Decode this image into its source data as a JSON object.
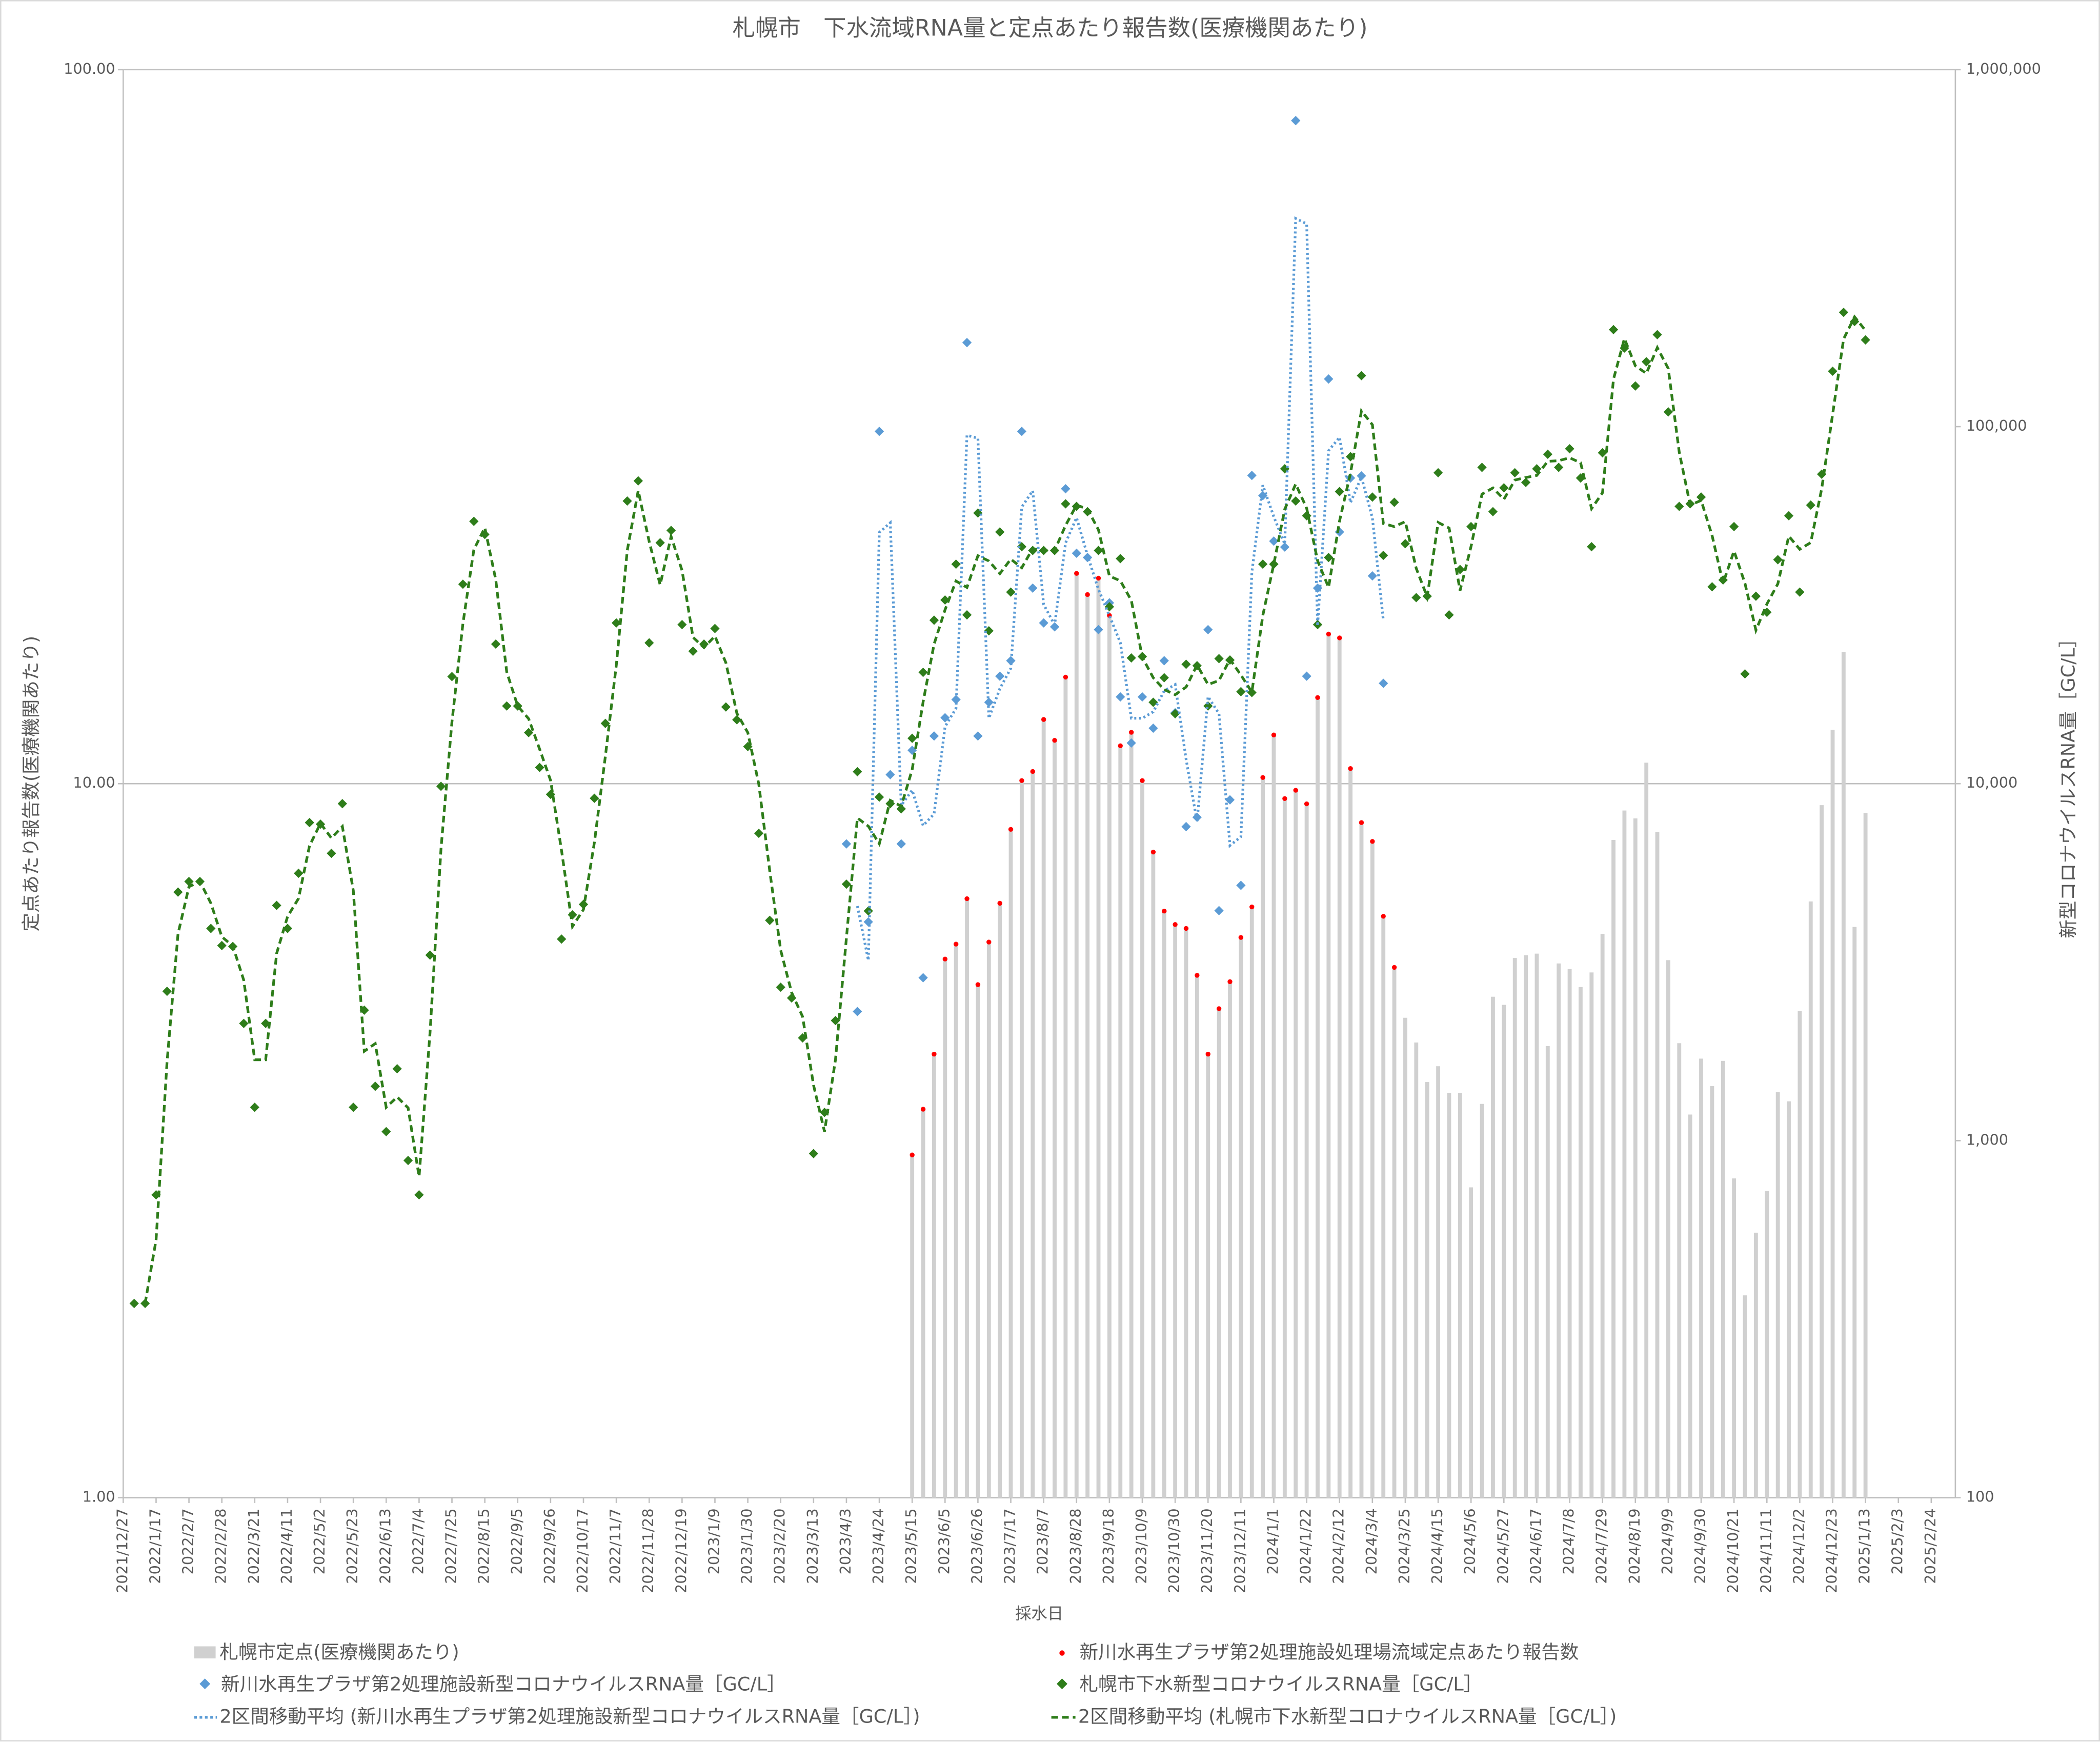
{
  "chart_data": {
    "type": "combo",
    "title": "札幌市　下水流域RNA量と定点あたり報告数(医療機関あたり)",
    "x_label": "採水日",
    "y_label": "定点あたり報告数(医療機関あたり)",
    "y2_label": "新型コロナウイルスRNA量［GC/L］",
    "ylim": [
      1,
      100
    ],
    "yticks": [
      {
        "value": 1,
        "label": "1.00"
      },
      {
        "value": 10,
        "label": "10.00"
      },
      {
        "value": 100,
        "label": "100.00"
      }
    ],
    "y2lim": [
      100,
      1000000
    ],
    "y2ticks": [
      100,
      {
        "value": 1000,
        "label": "1,000"
      },
      {
        "value": 10000,
        "label": "10,000"
      },
      {
        "value": 100000,
        "label": "100,000"
      },
      {
        "value": 1000000,
        "label": "1,000,000"
      }
    ],
    "log_scale": true,
    "grid": true,
    "legend": "bottom",
    "xlim": [
      "2021/12/27",
      "2025/2/24"
    ],
    "xticks": [
      "2021/12/27",
      "2022/1/17",
      "2022/2/7",
      "2022/2/28",
      "2022/3/21",
      "2022/4/11",
      "2022/5/2",
      "2022/5/23",
      "2022/6/13",
      "2022/7/4",
      "2022/7/25",
      "2022/8/15",
      "2022/9/5",
      "2022/9/26",
      "2022/10/17",
      "2022/11/7",
      "2022/11/28",
      "2022/12/19",
      "2023/1/9",
      "2023/1/30",
      "2023/2/20",
      "2023/3/13",
      "2023/4/3",
      "2023/4/24",
      "2023/5/15",
      "2023/6/5",
      "2023/6/26",
      "2023/7/17",
      "2023/8/7",
      "2023/8/28",
      "2023/9/18",
      "2023/10/9",
      "2023/10/30",
      "2023/11/20",
      "2023/12/11",
      "2024/1/1",
      "2024/1/22",
      "2024/2/12",
      "2024/3/4",
      "2024/3/25",
      "2024/4/15",
      "2024/5/6",
      "2024/5/27",
      "2024/6/17",
      "2024/7/8",
      "2024/7/29",
      "2024/8/19",
      "2024/9/9",
      "2024/9/30",
      "2024/10/21",
      "2024/11/11",
      "2024/12/2",
      "2024/12/23",
      "2025/1/13",
      "2025/2/3",
      "2025/2/24"
    ],
    "x": [
      "2022/1/3",
      "2022/1/10",
      "2022/1/17",
      "2022/1/24",
      "2022/1/31",
      "2022/2/7",
      "2022/2/14",
      "2022/2/21",
      "2022/2/28",
      "2022/3/7",
      "2022/3/14",
      "2022/3/21",
      "2022/3/28",
      "2022/4/4",
      "2022/4/11",
      "2022/4/18",
      "2022/4/25",
      "2022/5/2",
      "2022/5/9",
      "2022/5/16",
      "2022/5/23",
      "2022/5/30",
      "2022/6/6",
      "2022/6/13",
      "2022/6/20",
      "2022/6/27",
      "2022/7/4",
      "2022/7/11",
      "2022/7/18",
      "2022/7/25",
      "2022/8/1",
      "2022/8/8",
      "2022/8/15",
      "2022/8/22",
      "2022/8/29",
      "2022/9/5",
      "2022/9/12",
      "2022/9/19",
      "2022/9/26",
      "2022/10/3",
      "2022/10/10",
      "2022/10/17",
      "2022/10/24",
      "2022/10/31",
      "2022/11/7",
      "2022/11/14",
      "2022/11/21",
      "2022/11/28",
      "2022/12/5",
      "2022/12/12",
      "2022/12/19",
      "2022/12/26",
      "2023/1/2",
      "2023/1/9",
      "2023/1/16",
      "2023/1/23",
      "2023/1/30",
      "2023/2/6",
      "2023/2/13",
      "2023/2/20",
      "2023/2/27",
      "2023/3/6",
      "2023/3/13",
      "2023/3/20",
      "2023/3/27",
      "2023/4/3",
      "2023/4/10",
      "2023/4/17",
      "2023/4/24",
      "2023/5/1",
      "2023/5/8",
      "2023/5/15",
      "2023/5/22",
      "2023/5/29",
      "2023/6/5",
      "2023/6/12",
      "2023/6/19",
      "2023/6/26",
      "2023/7/3",
      "2023/7/10",
      "2023/7/17",
      "2023/7/24",
      "2023/7/31",
      "2023/8/7",
      "2023/8/14",
      "2023/8/21",
      "2023/8/28",
      "2023/9/4",
      "2023/9/11",
      "2023/9/18",
      "2023/9/25",
      "2023/10/2",
      "2023/10/9",
      "2023/10/16",
      "2023/10/23",
      "2023/10/30",
      "2023/11/6",
      "2023/11/13",
      "2023/11/20",
      "2023/11/27",
      "2023/12/4",
      "2023/12/11",
      "2023/12/18",
      "2023/12/25",
      "2024/1/1",
      "2024/1/8",
      "2024/1/15",
      "2024/1/22",
      "2024/1/29",
      "2024/2/5",
      "2024/2/12",
      "2024/2/19",
      "2024/2/26",
      "2024/3/4",
      "2024/3/11",
      "2024/3/18",
      "2024/3/25",
      "2024/4/1",
      "2024/4/8",
      "2024/4/15",
      "2024/4/22",
      "2024/4/29",
      "2024/5/6",
      "2024/5/13",
      "2024/5/20",
      "2024/5/27",
      "2024/6/3",
      "2024/6/10",
      "2024/6/17",
      "2024/6/24",
      "2024/7/1",
      "2024/7/8",
      "2024/7/15",
      "2024/7/22",
      "2024/7/29",
      "2024/8/5",
      "2024/8/12",
      "2024/8/19",
      "2024/8/26",
      "2024/9/2",
      "2024/9/9",
      "2024/9/16",
      "2024/9/23",
      "2024/9/30",
      "2024/10/7",
      "2024/10/14",
      "2024/10/21",
      "2024/10/28",
      "2024/11/4",
      "2024/11/11",
      "2024/11/18",
      "2024/11/25",
      "2024/12/2",
      "2024/12/9",
      "2024/12/16",
      "2024/12/23",
      "2024/12/30",
      "2025/1/6",
      "2025/1/13"
    ],
    "series": [
      {
        "name": "札幌市定点(医療機関あたり)",
        "kind": "bar",
        "axis": "y",
        "color": "#d0d0d0",
        "values": [
          null,
          null,
          null,
          null,
          null,
          null,
          null,
          null,
          null,
          null,
          null,
          null,
          null,
          null,
          null,
          null,
          null,
          null,
          null,
          null,
          null,
          null,
          null,
          null,
          null,
          null,
          null,
          null,
          null,
          null,
          null,
          null,
          null,
          null,
          null,
          null,
          null,
          null,
          null,
          null,
          null,
          null,
          null,
          null,
          null,
          null,
          null,
          null,
          null,
          null,
          null,
          null,
          null,
          null,
          null,
          null,
          null,
          null,
          null,
          null,
          null,
          null,
          null,
          null,
          null,
          null,
          null,
          null,
          null,
          null,
          null,
          3.02,
          3.5,
          4.18,
          5.68,
          5.96,
          6.9,
          5.23,
          6.0,
          6.8,
          8.63,
          10.1,
          10.4,
          12.3,
          11.5,
          14.1,
          19.7,
          18.4,
          19.4,
          17.2,
          11.3,
          11.8,
          10.1,
          8.02,
          6.63,
          6.35,
          6.27,
          5.39,
          4.18,
          4.84,
          5.28,
          6.09,
          6.72,
          10.2,
          11.7,
          9.53,
          9.79,
          9.37,
          13.2,
          16.2,
          16.0,
          10.5,
          8.82,
          8.3,
          6.52,
          5.53,
          4.7,
          4.34,
          3.82,
          4.02,
          3.69,
          3.69,
          2.72,
          3.56,
          5.03,
          4.9,
          5.7,
          5.75,
          5.78,
          4.29,
          5.6,
          5.5,
          5.19,
          5.44,
          6.16,
          8.34,
          9.17,
          8.94,
          10.7,
          8.56,
          5.66,
          4.33,
          3.44,
          4.12,
          3.77,
          4.09,
          2.8,
          1.92,
          2.35,
          2.69,
          3.7,
          3.59,
          4.8,
          6.84,
          9.33,
          11.9,
          15.3,
          6.3,
          9.1
        ]
      },
      {
        "name": "新川水再生プラザ第2処理施設処理場流域定点あたり報告数",
        "kind": "scatter",
        "marker": "circle",
        "axis": "y",
        "color": "#ff0000",
        "values": [
          null,
          null,
          null,
          null,
          null,
          null,
          null,
          null,
          null,
          null,
          null,
          null,
          null,
          null,
          null,
          null,
          null,
          null,
          null,
          null,
          null,
          null,
          null,
          null,
          null,
          null,
          null,
          null,
          null,
          null,
          null,
          null,
          null,
          null,
          null,
          null,
          null,
          null,
          null,
          null,
          null,
          null,
          null,
          null,
          null,
          null,
          null,
          null,
          null,
          null,
          null,
          null,
          null,
          null,
          null,
          null,
          null,
          null,
          null,
          null,
          null,
          null,
          null,
          null,
          null,
          null,
          null,
          null,
          null,
          null,
          null,
          3.02,
          3.5,
          4.18,
          5.68,
          5.96,
          6.9,
          5.23,
          6.0,
          6.8,
          8.63,
          10.1,
          10.4,
          12.3,
          11.5,
          14.1,
          19.7,
          18.4,
          19.4,
          17.2,
          11.3,
          11.8,
          10.1,
          8.02,
          6.63,
          6.35,
          6.27,
          5.39,
          4.18,
          4.84,
          5.28,
          6.09,
          6.72,
          10.2,
          11.7,
          9.53,
          9.79,
          9.37,
          13.2,
          16.2,
          16.0,
          10.5,
          8.82,
          8.3,
          6.52,
          5.53,
          null,
          null,
          null,
          null,
          null,
          null,
          null,
          null,
          null,
          null,
          null,
          null,
          null,
          null,
          null,
          null,
          null,
          null,
          null,
          null,
          null,
          null,
          null,
          null,
          null,
          null,
          null,
          null,
          null,
          null,
          null,
          null,
          null,
          null,
          null,
          null,
          null,
          null,
          null,
          null,
          null,
          null,
          null
        ]
      },
      {
        "name": "新川水再生プラザ第2処理施設新型コロナウイルスRNA量［GC/L］",
        "kind": "scatter",
        "marker": "diamond",
        "axis": "y2",
        "color": "#5b9bd5",
        "trendline": {
          "name": "2区間移動平均 (新川水再生プラザ第2処理施設新型コロナウイルスRNA量［GC/L］)",
          "period": 2,
          "dash": "dotted"
        },
        "values": [
          null,
          null,
          null,
          null,
          null,
          null,
          null,
          null,
          null,
          null,
          null,
          null,
          null,
          null,
          null,
          null,
          null,
          null,
          null,
          null,
          null,
          null,
          null,
          null,
          null,
          null,
          null,
          null,
          null,
          null,
          null,
          null,
          null,
          null,
          null,
          null,
          null,
          null,
          null,
          null,
          null,
          null,
          null,
          null,
          null,
          null,
          null,
          null,
          null,
          null,
          null,
          null,
          null,
          null,
          null,
          null,
          null,
          null,
          null,
          null,
          null,
          null,
          null,
          null,
          null,
          6780,
          2300,
          4100,
          97000,
          10600,
          6780,
          12400,
          2860,
          13600,
          15300,
          17200,
          172000,
          13600,
          16900,
          20000,
          22100,
          97000,
          35300,
          28200,
          27500,
          67000,
          44200,
          43000,
          27000,
          32100,
          17500,
          13000,
          17500,
          14300,
          22100,
          15800,
          7580,
          8050,
          27000,
          4410,
          9010,
          5190,
          73000,
          64100,
          47800,
          46000,
          720000,
          20000,
          35300,
          136000,
          50700,
          71800,
          72800,
          38200,
          19100,
          null,
          null,
          null,
          null,
          null,
          null,
          null,
          null,
          null,
          null,
          null,
          null,
          null,
          null,
          null,
          null,
          null,
          null,
          null,
          null,
          null,
          null,
          null,
          null,
          null,
          null,
          null,
          null,
          null,
          null,
          null,
          null,
          null,
          null,
          null,
          null,
          null,
          null,
          null,
          null,
          null,
          null,
          null,
          null
        ]
      },
      {
        "name": "札幌市下水新型コロナウイルスRNA量［GC/L］",
        "kind": "scatter",
        "marker": "diamond",
        "axis": "y2",
        "color": "#2e7d1a",
        "trendline": {
          "name": "2区間移動平均 (札幌市下水新型コロナウイルスRNA量［GC/L］)",
          "period": 2,
          "dash": "dashed"
        },
        "values": [
          350,
          350,
          705,
          2620,
          4970,
          5320,
          5320,
          3930,
          3520,
          3500,
          2130,
          1240,
          2130,
          4560,
          3930,
          5610,
          7780,
          7700,
          6380,
          8790,
          1240,
          2320,
          1420,
          1060,
          1590,
          880,
          705,
          3310,
          9830,
          19950,
          36200,
          54300,
          49900,
          24600,
          16500,
          16500,
          13900,
          11100,
          9330,
          3670,
          4290,
          4590,
          9100,
          14750,
          28200,
          61900,
          70500,
          24800,
          47300,
          51200,
          27900,
          23500,
          24600,
          27200,
          16400,
          15100,
          12700,
          7260,
          4140,
          2690,
          2510,
          1940,
          920,
          1200,
          2170,
          5230,
          10800,
          4400,
          9170,
          8790,
          8500,
          13400,
          20500,
          28700,
          32700,
          41200,
          29700,
          57300,
          26800,
          50700,
          34400,
          46100,
          45000,
          45000,
          45000,
          60800,
          59800,
          57800,
          45000,
          31300,
          42700,
          22500,
          22700,
          16900,
          19800,
          15700,
          21600,
          21400,
          16500,
          22400,
          22200,
          18100,
          18000,
          41200,
          41200,
          76200,
          61900,
          56300,
          27900,
          43000,
          65800,
          82400,
          139000,
          63500,
          43600,
          61400,
          47000,
          33200,
          33500,
          74300,
          29700,
          39800,
          52500,
          76900,
          57800,
          67400,
          74300,
          69800,
          76200,
          83700,
          76900,
          86700,
          71800,
          46100,
          84500,
          187000,
          166000,
          130000,
          152000,
          181000,
          110000,
          59800,
          60800,
          63500,
          35600,
          37200,
          52500,
          20300,
          33500,
          30200,
          42400,
          56300,
          34400,
          60300,
          73600,
          143000,
          209000,
          197000,
          175000
        ]
      }
    ]
  }
}
